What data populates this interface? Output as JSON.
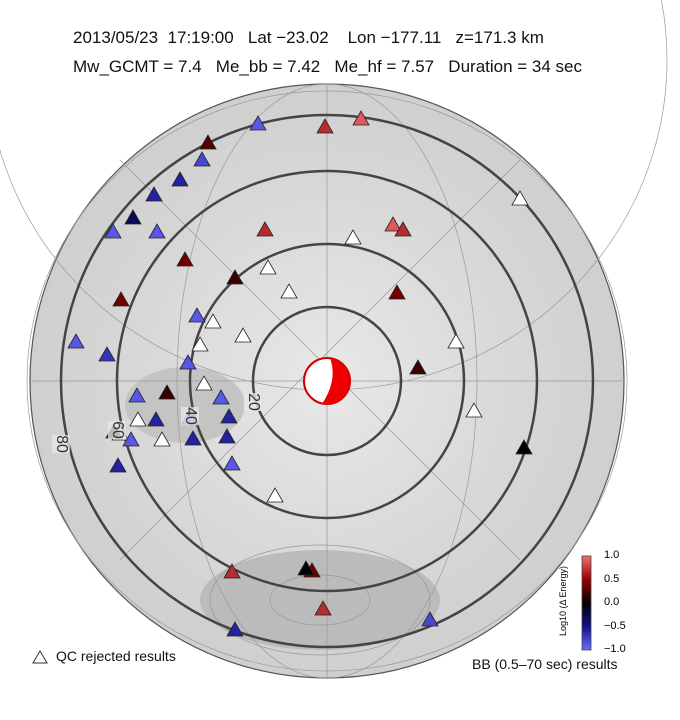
{
  "header": {
    "line1": "2013/05/23  17:19:00   Lat −23.02    Lon −177.11   z=171.3 km",
    "line2": "Mw_GCMT = 7.4   Me_bb = 7.42   Me_hf = 7.57   Duration = 34 sec"
  },
  "chart_data": {
    "type": "scatter",
    "projection": "azimuthal equidistant centered on epicenter",
    "distance_rings_deg": [
      "20",
      "40",
      "60",
      "80"
    ],
    "colorbar": {
      "label": "Log10 (Δ Energy)",
      "ticks": [
        "1.0",
        "0.5",
        "0.0",
        "−0.5",
        "−1.0"
      ],
      "range": [
        -1,
        1
      ],
      "low_color": "#6a6aff",
      "mid_color": "#000000",
      "high_color": "#f07070"
    },
    "station_values": [
      -0.9,
      0.7,
      0.9,
      0.3,
      -0.8,
      -0.6,
      -0.6,
      -0.3,
      -0.9,
      -0.9,
      0.7,
      0.4,
      0.2,
      null,
      null,
      null,
      0.9,
      0.7,
      null,
      0.4,
      0.4,
      -0.9,
      -0.7,
      -0.9,
      null,
      null,
      null,
      -0.9,
      null,
      0.2,
      -0.9,
      -0.9,
      -0.6,
      -0.6,
      -0.9,
      -0.9,
      -0.6,
      null,
      null,
      null,
      -0.9,
      0.0,
      -0.6,
      -0.6,
      0.2,
      null,
      null,
      0.0,
      null,
      0.7,
      0.4,
      0.0,
      0.7,
      -0.6,
      -0.8
    ]
  },
  "legend": {
    "rejected": "QC rejected results",
    "bb": "BB (0.5–70 sec) results"
  }
}
